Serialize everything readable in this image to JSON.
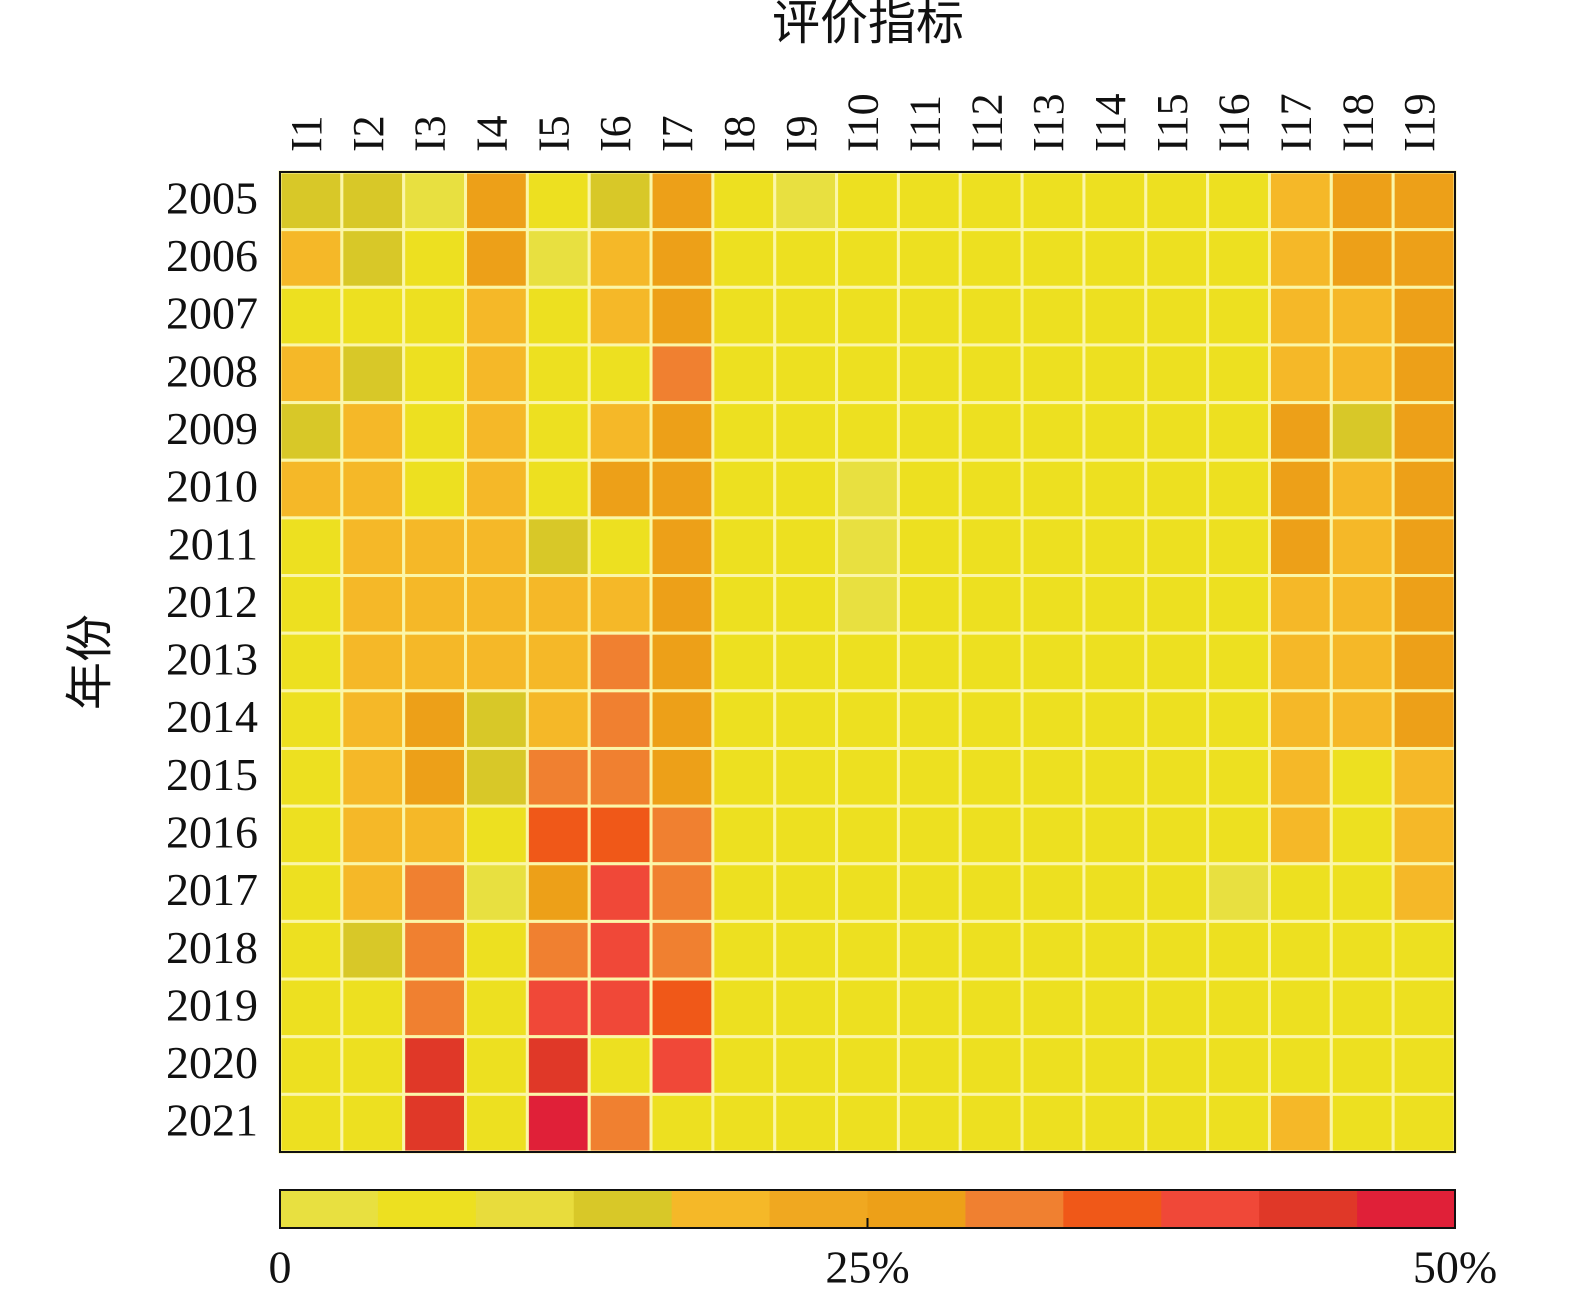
{
  "chart_data": {
    "type": "heatmap",
    "x_label": "评价指标",
    "y_label": "年份",
    "x_categories": [
      "I1",
      "I2",
      "I3",
      "I4",
      "I5",
      "I6",
      "I7",
      "I8",
      "I9",
      "I10",
      "I11",
      "I12",
      "I13",
      "I14",
      "I15",
      "I16",
      "I17",
      "I18",
      "I19"
    ],
    "y_categories": [
      "2005",
      "2006",
      "2007",
      "2008",
      "2009",
      "2010",
      "2011",
      "2012",
      "2013",
      "2014",
      "2015",
      "2016",
      "2017",
      "2018",
      "2019",
      "2020",
      "2021"
    ],
    "values": [
      [
        14,
        14,
        4,
        28,
        6,
        14,
        26,
        6,
        4,
        6,
        6,
        6,
        6,
        6,
        6,
        6,
        20,
        28,
        28
      ],
      [
        20,
        14,
        6,
        26,
        4,
        20,
        28,
        6,
        6,
        6,
        6,
        5,
        5,
        6,
        6,
        6,
        20,
        26,
        28
      ],
      [
        6,
        6,
        6,
        20,
        6,
        20,
        28,
        6,
        6,
        6,
        6,
        5,
        5,
        6,
        6,
        6,
        20,
        20,
        26
      ],
      [
        20,
        14,
        6,
        20,
        6,
        6,
        32,
        6,
        6,
        6,
        6,
        5,
        5,
        6,
        6,
        6,
        20,
        20,
        28
      ],
      [
        14,
        20,
        6,
        20,
        6,
        20,
        29,
        5,
        5,
        6,
        6,
        5,
        5,
        6,
        6,
        5,
        26,
        14,
        28
      ],
      [
        20,
        20,
        6,
        20,
        6,
        26,
        29,
        5,
        5,
        4,
        5,
        6,
        6,
        6,
        5,
        5,
        28,
        20,
        29
      ],
      [
        6,
        20,
        20,
        20,
        14,
        6,
        29,
        5,
        5,
        4,
        5,
        6,
        5,
        5,
        6,
        5,
        26,
        20,
        29
      ],
      [
        6,
        20,
        20,
        20,
        20,
        20,
        26,
        5,
        5,
        4,
        5,
        6,
        5,
        5,
        6,
        5,
        20,
        20,
        29
      ],
      [
        5,
        20,
        20,
        20,
        20,
        32,
        26,
        5,
        5,
        6,
        6,
        5,
        5,
        6,
        6,
        6,
        20,
        20,
        28
      ],
      [
        5,
        20,
        26,
        14,
        20,
        32,
        28,
        5,
        6,
        6,
        6,
        6,
        6,
        6,
        6,
        6,
        20,
        20,
        29
      ],
      [
        6,
        20,
        26,
        14,
        32,
        32,
        26,
        5,
        5,
        6,
        5,
        6,
        5,
        6,
        6,
        5,
        20,
        6,
        20
      ],
      [
        5,
        20,
        20,
        6,
        36,
        35,
        32,
        6,
        6,
        6,
        6,
        6,
        6,
        6,
        5,
        6,
        20,
        6,
        20
      ],
      [
        6,
        20,
        32,
        4,
        26,
        38,
        32,
        6,
        6,
        6,
        5,
        6,
        6,
        6,
        5,
        4,
        6,
        6,
        20
      ],
      [
        6,
        14,
        32,
        6,
        32,
        38,
        32,
        6,
        6,
        6,
        6,
        6,
        6,
        6,
        6,
        6,
        6,
        5,
        6
      ],
      [
        5,
        5,
        32,
        6,
        38,
        38,
        35,
        6,
        6,
        6,
        5,
        6,
        6,
        6,
        5,
        6,
        6,
        6,
        5
      ],
      [
        5,
        6,
        42,
        6,
        42,
        5,
        38,
        6,
        6,
        6,
        6,
        6,
        6,
        6,
        6,
        6,
        6,
        6,
        6
      ],
      [
        5,
        6,
        45,
        6,
        48,
        33,
        6,
        6,
        6,
        6,
        6,
        6,
        6,
        6,
        6,
        6,
        20,
        5,
        6
      ]
    ],
    "colorscale": [
      "#e8e040",
      "#ede020",
      "#e8dc3c",
      "#d8c828",
      "#f5b828",
      "#f0a820",
      "#eda018",
      "#f08030",
      "#f05818",
      "#f04838",
      "#e03828",
      "#e02038"
    ],
    "clim": [
      0,
      50
    ],
    "cticks": [
      0,
      {
        "value": 25,
        "label": "25%"
      },
      {
        "value": 50,
        "label": "50%"
      }
    ],
    "grid_color": "#fbf6a8"
  }
}
